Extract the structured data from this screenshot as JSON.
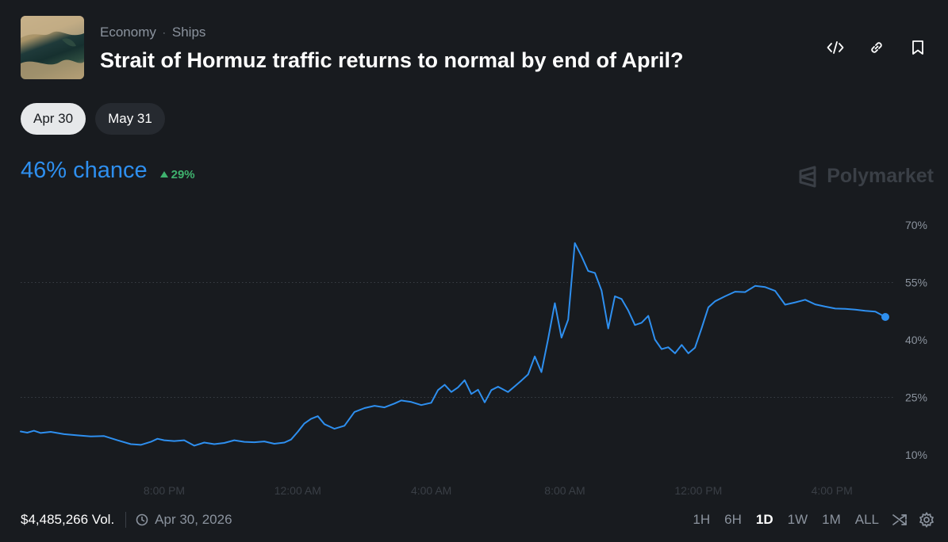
{
  "header": {
    "breadcrumb": [
      "Economy",
      "Ships"
    ],
    "breadcrumb_separator": "·",
    "title": "Strait of Hormuz traffic returns to normal by end of April?",
    "icons": [
      "code-embed-icon",
      "link-icon",
      "bookmark-icon"
    ]
  },
  "date_tabs": [
    {
      "label": "Apr 30",
      "active": true
    },
    {
      "label": "May 31",
      "active": false
    }
  ],
  "summary": {
    "chance_text": "46% chance",
    "delta_text": "29%",
    "delta_direction": "up"
  },
  "brand": {
    "name": "Polymarket"
  },
  "footer": {
    "volume": "$4,485,266 Vol.",
    "date": "Apr 30, 2026",
    "ranges": [
      "1H",
      "6H",
      "1D",
      "1W",
      "1M",
      "ALL"
    ],
    "active_range": "1D",
    "tools": [
      "shuffle-icon",
      "settings-icon"
    ]
  },
  "colors": {
    "background": "#181b1f",
    "line": "#2e8fef",
    "positive": "#3fb26e",
    "muted_text": "#8b939e",
    "grid": "#3a3f46"
  },
  "chart_data": {
    "type": "line",
    "title": "",
    "xlabel": "",
    "ylabel": "",
    "x_ticks": [
      "8:00 PM",
      "12:00 AM",
      "4:00 AM",
      "8:00 AM",
      "12:00 PM",
      "4:00 PM"
    ],
    "x_tick_hours": [
      20,
      24,
      28,
      32,
      36,
      40
    ],
    "xlim_hours": [
      15.7,
      41.6
    ],
    "y_ticks": [
      "10%",
      "25%",
      "40%",
      "55%",
      "70%"
    ],
    "y_tick_values": [
      10,
      25,
      40,
      55,
      70
    ],
    "ylim": [
      10,
      70
    ],
    "gridlines_at": [
      25,
      55
    ],
    "series": [
      {
        "x_hours": [
          15.7,
          15.9,
          16.1,
          16.3,
          16.6,
          17.0,
          17.4,
          17.8,
          18.2,
          18.6,
          19.0,
          19.3,
          19.6,
          19.8,
          20.0,
          20.3,
          20.6,
          20.9,
          21.2,
          21.5,
          21.8,
          22.1,
          22.4,
          22.7,
          23.0,
          23.3,
          23.6,
          23.8,
          24.0,
          24.2,
          24.4,
          24.6,
          24.8,
          25.1,
          25.4,
          25.7,
          26.0,
          26.3,
          26.6,
          26.9,
          27.1,
          27.4,
          27.7,
          28.0,
          28.2,
          28.4,
          28.6,
          28.8,
          29.0,
          29.2,
          29.4,
          29.6,
          29.8,
          30.0,
          30.3,
          30.5,
          30.7,
          30.9,
          31.1,
          31.3,
          31.5,
          31.7,
          31.9,
          32.1,
          32.3,
          32.5,
          32.7,
          32.9,
          33.1,
          33.3,
          33.5,
          33.7,
          33.9,
          34.1,
          34.3,
          34.5,
          34.7,
          34.9,
          35.1,
          35.3,
          35.5,
          35.7,
          35.9,
          36.1,
          36.3,
          36.5,
          36.8,
          37.1,
          37.4,
          37.7,
          38.0,
          38.3,
          38.6,
          38.9,
          39.2,
          39.5,
          39.8,
          40.1,
          40.4,
          40.7,
          41.0,
          41.3,
          41.6
        ],
        "values": [
          16.1,
          15.8,
          16.3,
          15.7,
          16.0,
          15.4,
          15.1,
          14.8,
          14.9,
          13.8,
          12.8,
          12.6,
          13.4,
          14.2,
          13.8,
          13.6,
          13.8,
          12.4,
          13.2,
          12.8,
          13.1,
          13.8,
          13.4,
          13.3,
          13.5,
          12.9,
          13.2,
          14.0,
          16.0,
          18.2,
          19.4,
          20.1,
          18.0,
          16.8,
          17.6,
          21.2,
          22.2,
          22.8,
          22.4,
          23.4,
          24.2,
          23.8,
          23.0,
          23.6,
          26.9,
          28.3,
          26.4,
          27.6,
          29.5,
          25.9,
          27.0,
          23.7,
          26.9,
          27.8,
          26.4,
          27.9,
          29.4,
          31.0,
          35.7,
          31.6,
          40.2,
          49.6,
          40.6,
          45.3,
          65.3,
          61.9,
          58.0,
          57.5,
          52.9,
          43.0,
          51.4,
          50.7,
          47.7,
          43.9,
          44.5,
          46.3,
          40.1,
          37.6,
          38.1,
          36.5,
          38.7,
          36.5,
          38.0,
          43.1,
          48.5,
          50.1,
          51.4,
          52.6,
          52.5,
          54.1,
          53.8,
          52.8,
          49.2,
          49.8,
          50.5,
          49.3,
          48.7,
          48.2,
          48.1,
          47.9,
          47.6,
          47.4,
          46.0
        ]
      }
    ],
    "grid": true,
    "legend": "none",
    "end_marker": true
  }
}
